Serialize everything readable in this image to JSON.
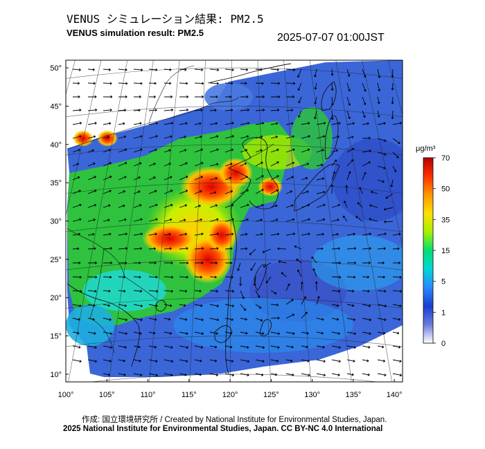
{
  "header": {
    "title_jp": "VENUS シミュレーション結果: PM2.5",
    "title_en": "VENUS simulation result: PM2.5",
    "timestamp": "2025-07-07 01:00JST"
  },
  "footer": {
    "credit": "作成: 国立環境研究所 / Created by National Institute for Environmental Studies, Japan.",
    "license": "2025 National Institute for Environmental Studies, Japan. CC BY-NC 4.0 International"
  },
  "map": {
    "lat_ticks": [
      "50°",
      "45°",
      "40°",
      "35°",
      "30°",
      "25°",
      "20°",
      "15°",
      "10°"
    ],
    "lon_ticks": [
      "100°",
      "105°",
      "110°",
      "115°",
      "120°",
      "125°",
      "130°",
      "135°",
      "140°"
    ],
    "lat_range": [
      9,
      51
    ],
    "lon_range": [
      100,
      141
    ]
  },
  "colorbar": {
    "unit": "μg/m³",
    "labels": [
      "70",
      "50",
      "35",
      "15",
      "5",
      "1",
      "0"
    ],
    "colors": [
      "#b40000",
      "#ff3000",
      "#ff9600",
      "#ffe000",
      "#a8f000",
      "#00e070",
      "#00d8d8",
      "#2a88ff",
      "#1a40d0",
      "#6a7cdc",
      "#ffffff"
    ]
  },
  "colors": {
    "ocean": "#3a66d8",
    "land_clean": "#2ec23e",
    "hotspot": "#ff2a00",
    "coast": "#111111"
  }
}
